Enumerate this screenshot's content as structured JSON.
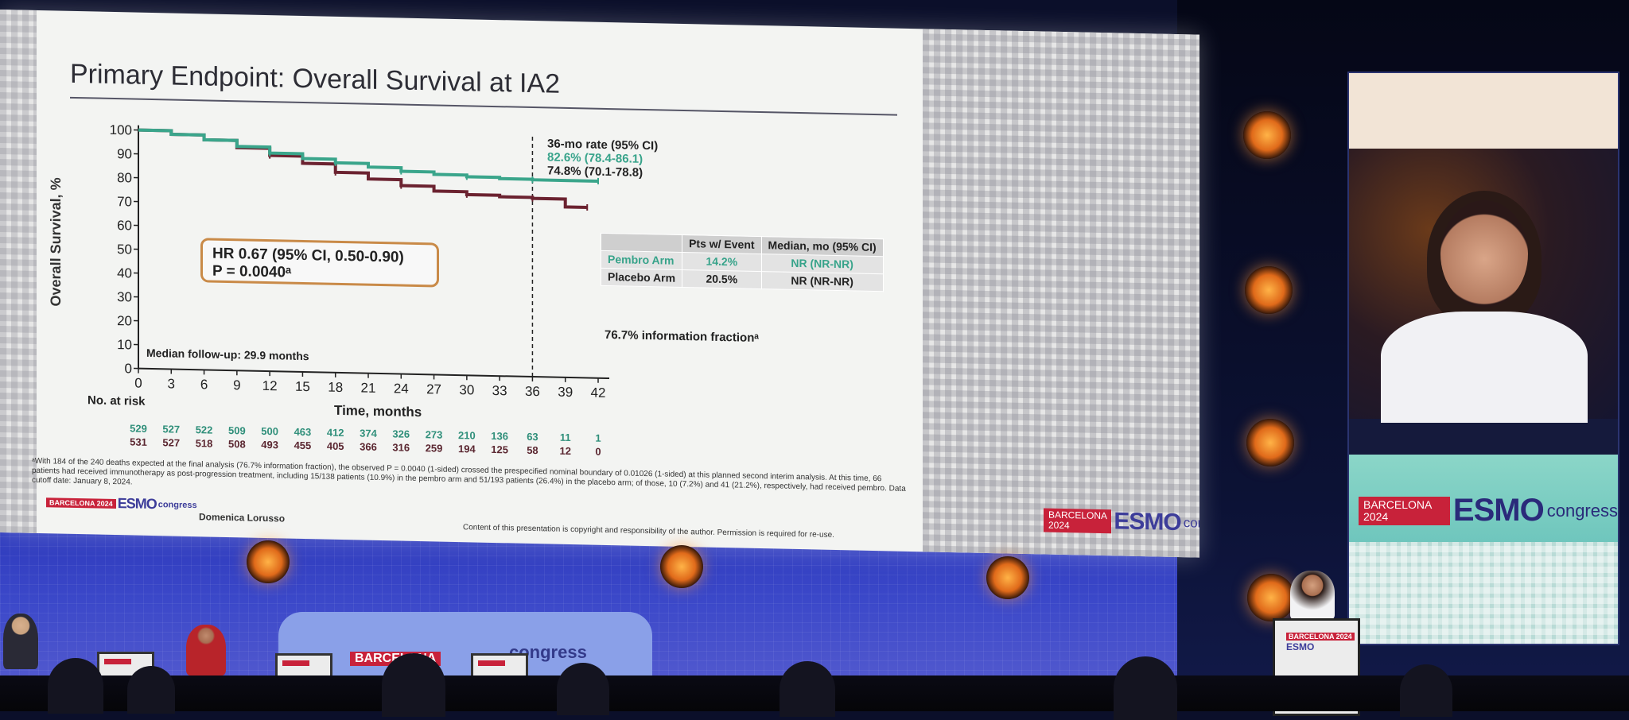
{
  "slide": {
    "title": "Primary Endpoint: Overall Survival at IA2",
    "y_axis_label": "Overall Survival, %",
    "x_axis_label": "Time, months",
    "median_followup": "Median follow-up: 29.9 months",
    "hr_line1": "HR 0.67 (95% CI, 0.50-0.90)",
    "hr_line2": "P = 0.0040ᵃ",
    "rate_title": "36-mo rate (95% CI)",
    "rate_pembro": "82.6% (78.4-86.1)",
    "rate_placebo": "74.8% (70.1-78.8)",
    "no_at_risk_label": "No. at risk",
    "risk_pembro": [
      "529",
      "527",
      "522",
      "509",
      "500",
      "463",
      "412",
      "374",
      "326",
      "273",
      "210",
      "136",
      "63",
      "11",
      "1"
    ],
    "risk_placebo": [
      "531",
      "527",
      "518",
      "508",
      "493",
      "455",
      "405",
      "366",
      "316",
      "259",
      "194",
      "125",
      "58",
      "12",
      "0"
    ],
    "table": {
      "headers": [
        "",
        "Pts w/ Event",
        "Median, mo (95% CI)"
      ],
      "rows": [
        {
          "arm": "Pembro Arm",
          "pts": "14.2%",
          "median": "NR (NR-NR)"
        },
        {
          "arm": "Placebo Arm",
          "pts": "20.5%",
          "median": "NR (NR-NR)"
        }
      ]
    },
    "info_fraction": "76.7% information fractionᵃ",
    "footnote": "ᵃWith 184 of the 240 deaths expected at the final analysis (76.7% information fraction), the observed P = 0.0040 (1-sided) crossed the prespecified nominal boundary of 0.01026 (1-sided) at this planned second interim analysis. At this time, 66 patients had received immunotherapy as post-progression treatment, including 15/138 patients (10.9%) in the pembro arm and 51/193 patients (26.4%) in the placebo arm; of those, 10 (7.2%) and 41 (21.2%), respectively, had received pembro. Data cutoff date: January 8, 2024.",
    "author": "Domenica Lorusso",
    "copyright": "Content of this presentation is copyright and responsibility of the author. Permission is required for re-use.",
    "logo_city": "BARCELONA 2024",
    "logo_word": "ESMO",
    "logo_congress": "congress"
  },
  "chart_data": {
    "type": "line",
    "xlabel": "Time, months",
    "ylabel": "Overall Survival, %",
    "xlim": [
      0,
      42
    ],
    "ylim": [
      0,
      100
    ],
    "x_ticks": [
      0,
      3,
      6,
      9,
      12,
      15,
      18,
      21,
      24,
      27,
      30,
      33,
      36,
      39,
      42
    ],
    "y_ticks": [
      0,
      10,
      20,
      30,
      40,
      50,
      60,
      70,
      80,
      90,
      100
    ],
    "reference_line_x": 36,
    "series": [
      {
        "name": "Pembro Arm",
        "color": "#3aa58b",
        "x": [
          0,
          3,
          6,
          9,
          12,
          15,
          18,
          21,
          24,
          27,
          30,
          33,
          36,
          39,
          42
        ],
        "y": [
          100,
          98.5,
          96.5,
          94,
          91.5,
          89.5,
          88,
          86.5,
          85,
          84,
          83.3,
          82.8,
          82.6,
          82.6,
          82.6
        ]
      },
      {
        "name": "Placebo Arm",
        "color": "#6b2230",
        "x": [
          0,
          3,
          6,
          9,
          12,
          15,
          18,
          21,
          24,
          27,
          30,
          33,
          36,
          39,
          41
        ],
        "y": [
          100,
          98.5,
          96.5,
          93.5,
          90.5,
          87.5,
          84,
          81.5,
          79,
          77,
          75.8,
          75.2,
          74.8,
          71.5,
          71.5
        ]
      }
    ]
  },
  "video": {
    "logo_city": "BARCELONA 2024",
    "logo_word": "ESMO",
    "logo_congress": "congress"
  },
  "stage": {
    "banner_text": "congress",
    "banner_city": "BARCELONA"
  },
  "colors": {
    "pembro": "#3aa58b",
    "placebo": "#6b2230",
    "hr_border": "#c98a48",
    "esmo_red": "#c8223a",
    "esmo_blue": "#3d3d9a"
  }
}
